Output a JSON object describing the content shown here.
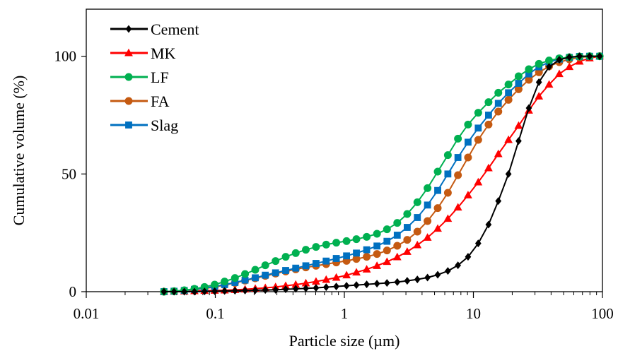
{
  "chart_data": {
    "type": "scatter",
    "title": "",
    "xlabel": "Particle size (µm)",
    "ylabel": "Cumulative volume (%)",
    "xscale": "log",
    "xlim": [
      0.01,
      100
    ],
    "ylim": [
      0,
      120
    ],
    "x_ticks": [
      {
        "value": 0.01,
        "label": "0.01"
      },
      {
        "value": 0.1,
        "label": "0.1"
      },
      {
        "value": 1,
        "label": "1"
      },
      {
        "value": 10,
        "label": "10"
      },
      {
        "value": 100,
        "label": "100"
      }
    ],
    "y_ticks": [
      {
        "value": 0,
        "label": "0"
      },
      {
        "value": 50,
        "label": "50"
      },
      {
        "value": 100,
        "label": "100"
      }
    ],
    "grid": false,
    "legend_position": "top-left",
    "x": [
      0.04,
      0.0479,
      0.0575,
      0.0689,
      0.0825,
      0.0989,
      0.118,
      0.142,
      0.17,
      0.204,
      0.244,
      0.293,
      0.351,
      0.42,
      0.503,
      0.603,
      0.723,
      0.866,
      1.04,
      1.24,
      1.49,
      1.79,
      2.14,
      2.57,
      3.07,
      3.68,
      4.41,
      5.29,
      6.34,
      7.59,
      9.09,
      10.9,
      13.1,
      15.6,
      18.7,
      22.4,
      26.9,
      32.2,
      38.6,
      46.3,
      55.4,
      66.4,
      79.5,
      95.2
    ],
    "series": [
      {
        "name": "Cement",
        "color": "#000000",
        "marker": "diamond",
        "y": [
          0,
          0,
          0,
          0,
          0.1,
          0.2,
          0.3,
          0.4,
          0.5,
          0.6,
          0.7,
          0.8,
          1,
          1.2,
          1.4,
          1.6,
          1.9,
          2.2,
          2.5,
          2.8,
          3.1,
          3.4,
          3.7,
          4.1,
          4.6,
          5.2,
          6.0,
          7.2,
          8.8,
          11.2,
          14.8,
          20.5,
          28.5,
          38.5,
          50,
          64,
          78,
          89,
          95.5,
          98.5,
          99.6,
          100,
          100,
          100
        ]
      },
      {
        "name": "MK",
        "color": "#ff0000",
        "marker": "triangle",
        "y": [
          0,
          0.1,
          0.2,
          0.3,
          0.4,
          0.5,
          0.6,
          0.8,
          1.0,
          1.3,
          1.6,
          2.0,
          2.5,
          3.0,
          3.6,
          4.3,
          5.1,
          6.0,
          7.0,
          8.2,
          9.5,
          11.0,
          12.7,
          14.7,
          17.0,
          19.8,
          23.0,
          26.8,
          31.0,
          35.8,
          41.0,
          46.5,
          52.5,
          58.5,
          64.5,
          70.5,
          77,
          83,
          88,
          92.5,
          95.5,
          97.8,
          99.2,
          100
        ]
      },
      {
        "name": "LF",
        "color": "#00b050",
        "marker": "circle",
        "y": [
          0,
          0.2,
          0.6,
          1.2,
          2.0,
          3.0,
          4.3,
          5.8,
          7.5,
          9.3,
          11.2,
          13.0,
          14.8,
          16.4,
          17.8,
          19.0,
          20.0,
          20.8,
          21.5,
          22.3,
          23.3,
          24.6,
          26.5,
          29.2,
          33.0,
          38.0,
          44.0,
          51.0,
          58.0,
          65.0,
          71.0,
          76.0,
          80.5,
          84.5,
          88.0,
          91.5,
          94.5,
          96.8,
          98.2,
          99.1,
          99.6,
          99.9,
          100,
          100
        ]
      },
      {
        "name": "FA",
        "color": "#c55a11",
        "marker": "circle",
        "y": [
          0,
          0.2,
          0.5,
          0.9,
          1.4,
          2.0,
          2.8,
          3.7,
          4.7,
          5.7,
          6.7,
          7.7,
          8.6,
          9.5,
          10.3,
          11.0,
          11.7,
          12.4,
          13.1,
          13.9,
          14.8,
          16.0,
          17.5,
          19.5,
          22.0,
          25.5,
          30.0,
          35.5,
          42.0,
          49.5,
          57.0,
          64.5,
          71.0,
          76.5,
          81.5,
          86.0,
          90.0,
          93.2,
          95.7,
          97.5,
          98.7,
          99.5,
          99.9,
          100
        ]
      },
      {
        "name": "Slag",
        "color": "#0070c0",
        "marker": "square",
        "y": [
          0,
          0.2,
          0.5,
          1.0,
          1.5,
          2.2,
          3.0,
          3.9,
          4.9,
          5.9,
          7.0,
          8.0,
          9.0,
          10.0,
          11.0,
          12.0,
          13.0,
          14.1,
          15.2,
          16.4,
          17.8,
          19.4,
          21.4,
          24.0,
          27.3,
          31.5,
          36.8,
          43.0,
          50.0,
          57.0,
          63.5,
          69.5,
          75.0,
          80.0,
          84.5,
          88.5,
          92.5,
          95.5,
          97.5,
          98.8,
          99.5,
          99.9,
          100,
          100
        ]
      }
    ]
  }
}
